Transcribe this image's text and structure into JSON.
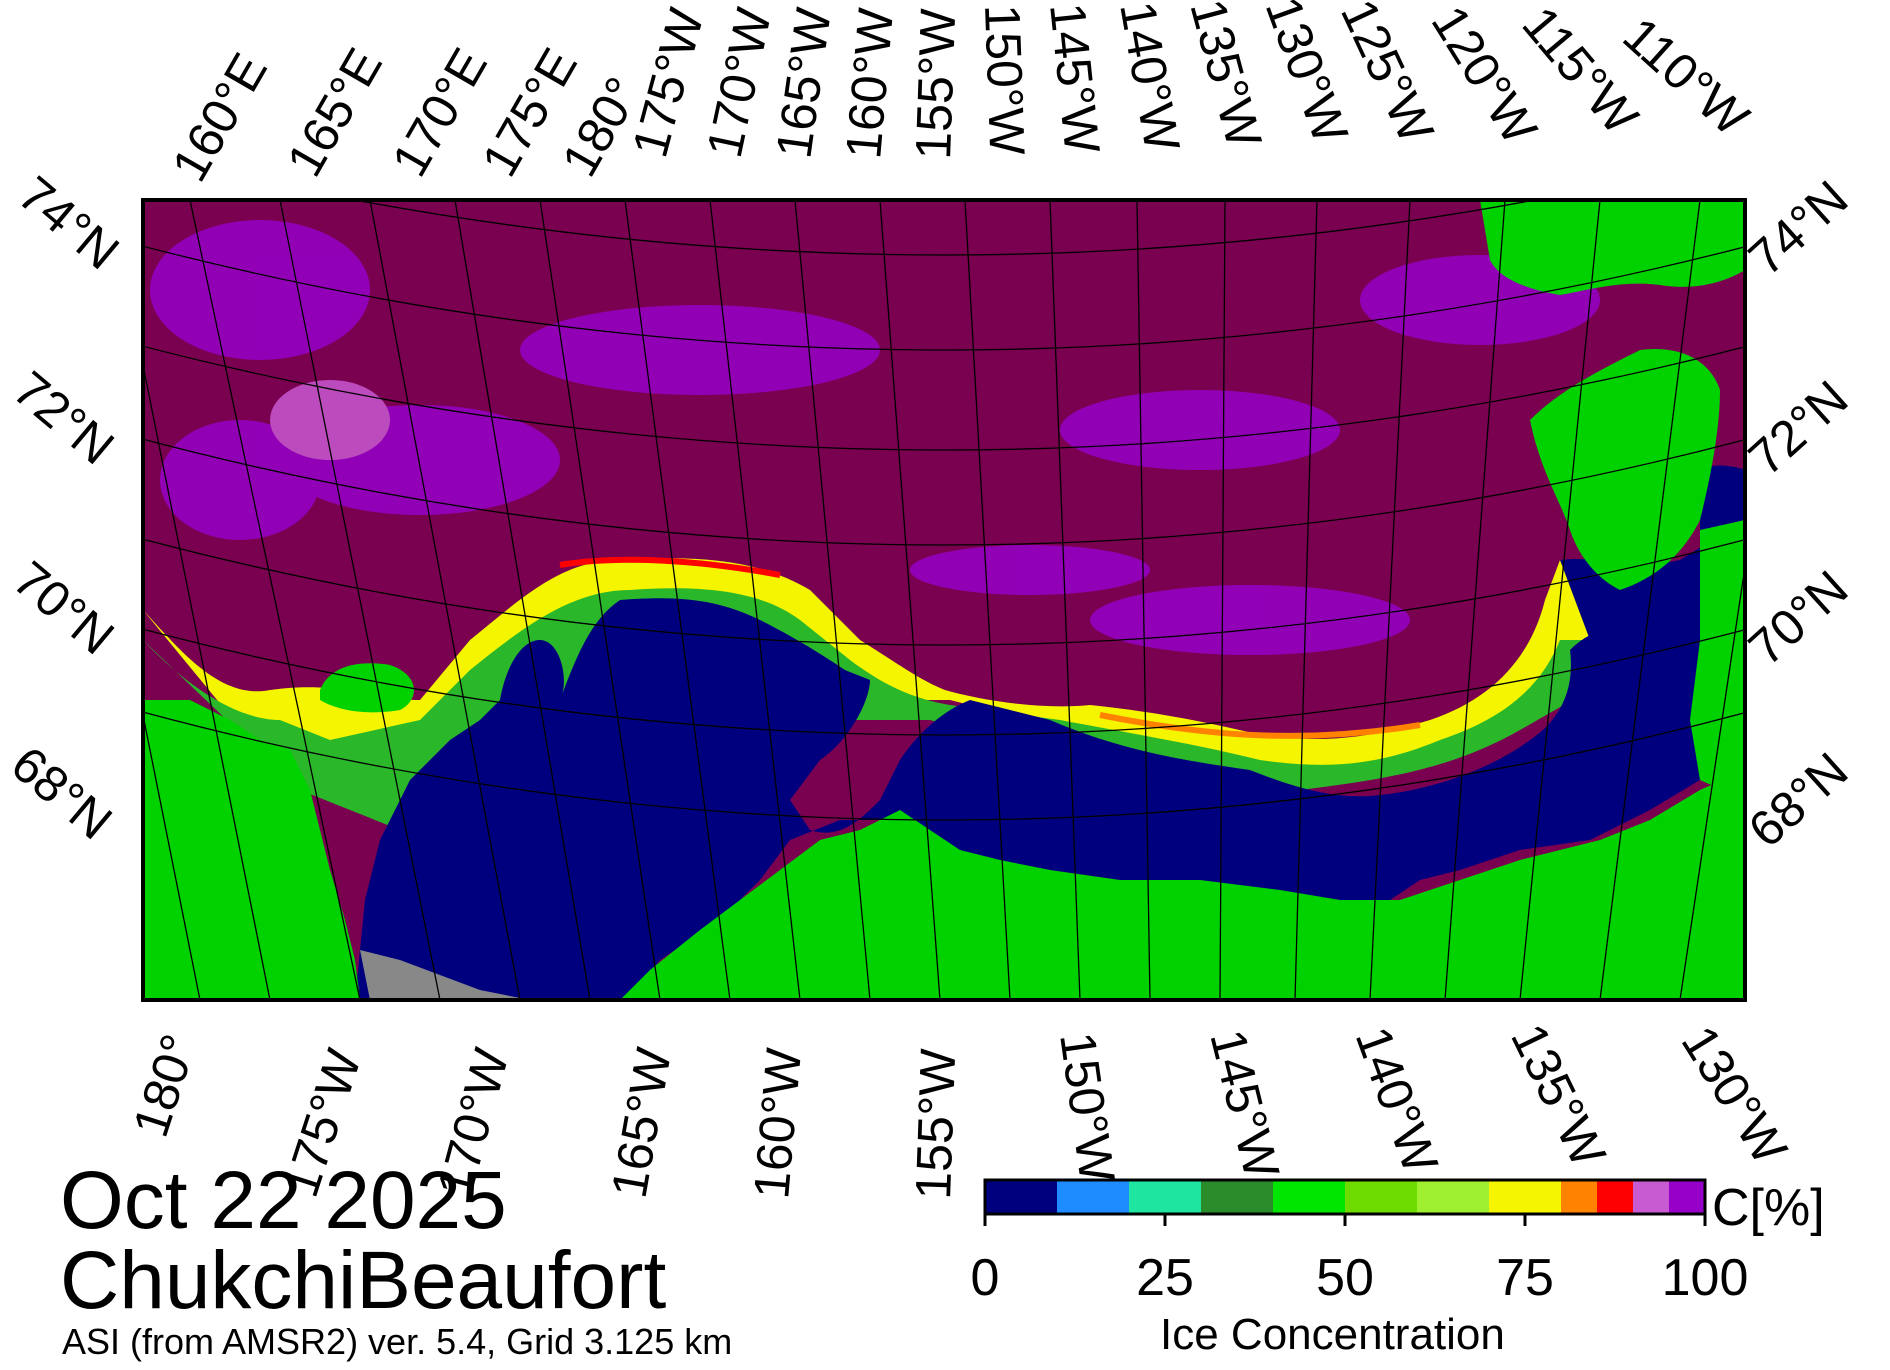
{
  "title": {
    "date": "Oct 22 2025",
    "region": "ChukchiBeaufort",
    "source": "ASI (from AMSR2) ver. 5.4,  Grid 3.125 km"
  },
  "map": {
    "colors": {
      "open_water": "#00007f",
      "land": "#00d200",
      "ice_full": "#7a0050",
      "no_data": "#888888"
    },
    "top_lon_labels": [
      "160°E",
      "165°E",
      "170°E",
      "175°E",
      "180°",
      "175°W",
      "170°W",
      "165°W",
      "160°W",
      "155°W",
      "150°W",
      "145°W",
      "140°W",
      "135°W",
      "130°W",
      "125°W",
      "120°W",
      "115°W",
      "110°W"
    ],
    "bottom_lon_labels": [
      "180°",
      "175°W",
      "170°W",
      "165°W",
      "160°W",
      "155°W",
      "150°W",
      "145°W",
      "140°W",
      "135°W",
      "130°W"
    ],
    "left_lat_labels": [
      "74°N",
      "72°N",
      "70°N",
      "68°N"
    ],
    "right_lat_labels": [
      "74°N",
      "72°N",
      "70°N",
      "68°N"
    ]
  },
  "colorbar": {
    "title": "Ice Concentration",
    "unit": "C[%]",
    "ticks": [
      "0",
      "25",
      "50",
      "75",
      "100"
    ],
    "bins": [
      {
        "from": 0,
        "to": 10,
        "color": "#00007f"
      },
      {
        "from": 10,
        "to": 20,
        "color": "#1e8cff"
      },
      {
        "from": 20,
        "to": 30,
        "color": "#1ee6a0"
      },
      {
        "from": 30,
        "to": 40,
        "color": "#2a8c2a"
      },
      {
        "from": 40,
        "to": 50,
        "color": "#00e600"
      },
      {
        "from": 50,
        "to": 60,
        "color": "#6edc00"
      },
      {
        "from": 60,
        "to": 70,
        "color": "#a0f032"
      },
      {
        "from": 70,
        "to": 80,
        "color": "#f5f500"
      },
      {
        "from": 80,
        "to": 85,
        "color": "#ff8200"
      },
      {
        "from": 85,
        "to": 90,
        "color": "#ff0000"
      },
      {
        "from": 90,
        "to": 95,
        "color": "#c85ad2"
      },
      {
        "from": 95,
        "to": 100,
        "color": "#9600c8"
      }
    ]
  }
}
